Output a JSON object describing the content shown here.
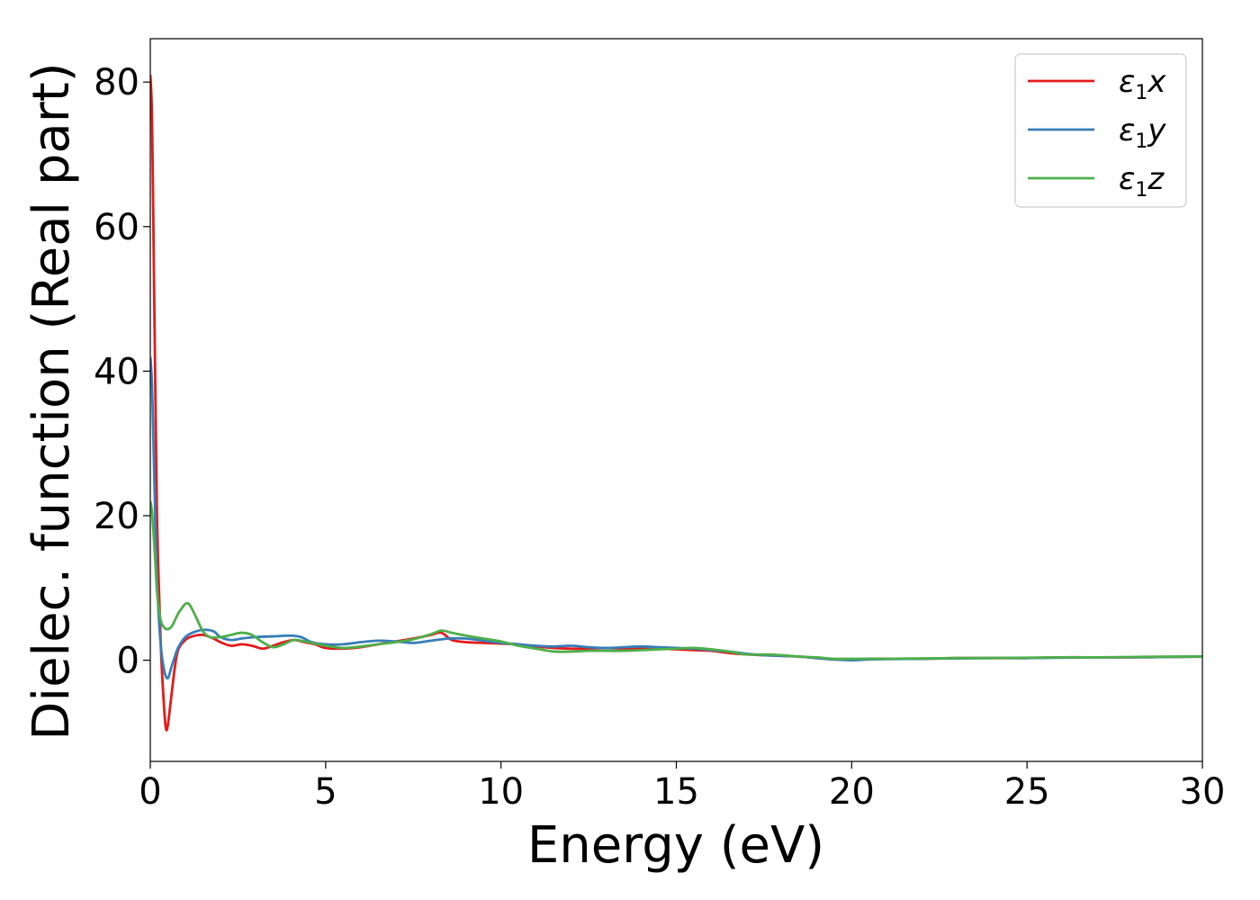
{
  "chart_data": {
    "type": "line",
    "xlabel": "Energy (eV)",
    "ylabel": "Dielec. function (Real part)",
    "xlim": [
      0,
      30
    ],
    "ylim": [
      -14,
      86
    ],
    "xticks": [
      0,
      5,
      10,
      15,
      20,
      25,
      30
    ],
    "xtick_labels": [
      "0",
      "5",
      "10",
      "15",
      "20",
      "25",
      "30"
    ],
    "yticks": [
      0,
      20,
      40,
      60,
      80
    ],
    "ytick_labels": [
      "0",
      "20",
      "40",
      "60",
      "80"
    ],
    "grid": false,
    "legend_position": "top-right",
    "series": [
      {
        "name": "ε1x",
        "legend": {
          "main": "ε",
          "sub": "1",
          "axis": "x"
        },
        "color": "#e41a1c",
        "x": [
          0.0,
          0.05,
          0.1,
          0.15,
          0.2,
          0.3,
          0.4,
          0.45,
          0.5,
          0.6,
          0.7,
          0.8,
          1.0,
          1.2,
          1.5,
          1.8,
          2.0,
          2.3,
          2.6,
          2.9,
          3.2,
          3.5,
          3.8,
          4.1,
          4.4,
          4.7,
          5.0,
          5.5,
          6.0,
          6.5,
          7.0,
          7.5,
          8.0,
          8.3,
          8.6,
          9.0,
          9.5,
          10.0,
          10.5,
          11.0,
          11.5,
          12.0,
          12.5,
          13.0,
          13.5,
          14.0,
          14.5,
          15.0,
          15.5,
          16.0,
          16.5,
          17.0,
          17.5,
          18.0,
          18.5,
          19.0,
          19.5,
          20.0,
          20.5,
          21.0,
          22.0,
          23.0,
          24.0,
          25.0,
          26.0,
          27.0,
          28.0,
          29.0,
          30.0
        ],
        "values": [
          81,
          75,
          55,
          35,
          18,
          2,
          -7,
          -9.5,
          -9,
          -5,
          -1,
          1.5,
          2.8,
          3.3,
          3.5,
          3.0,
          2.5,
          2.0,
          2.2,
          2.0,
          1.6,
          2.0,
          2.5,
          2.8,
          2.5,
          2.2,
          1.7,
          1.6,
          1.8,
          2.2,
          2.6,
          3.0,
          3.5,
          3.8,
          2.8,
          2.5,
          2.4,
          2.3,
          2.2,
          1.9,
          1.7,
          1.6,
          1.6,
          1.7,
          1.6,
          1.6,
          1.6,
          1.5,
          1.4,
          1.3,
          1.0,
          0.8,
          0.7,
          0.6,
          0.5,
          0.3,
          0.1,
          0.1,
          0.2,
          0.2,
          0.2,
          0.3,
          0.3,
          0.3,
          0.4,
          0.4,
          0.4,
          0.45,
          0.5
        ]
      },
      {
        "name": "ε1y",
        "legend": {
          "main": "ε",
          "sub": "1",
          "axis": "y"
        },
        "color": "#377eb8",
        "x": [
          0.0,
          0.05,
          0.1,
          0.15,
          0.2,
          0.3,
          0.4,
          0.5,
          0.6,
          0.7,
          0.8,
          1.0,
          1.2,
          1.5,
          1.8,
          2.0,
          2.3,
          2.6,
          3.0,
          3.5,
          4.0,
          4.3,
          4.6,
          5.0,
          5.5,
          6.0,
          6.5,
          7.0,
          7.5,
          8.0,
          8.5,
          9.0,
          9.5,
          10.0,
          10.5,
          11.0,
          11.5,
          12.0,
          12.5,
          13.0,
          13.5,
          14.0,
          14.5,
          15.0,
          15.5,
          16.0,
          16.5,
          17.0,
          17.5,
          18.0,
          18.5,
          19.0,
          19.5,
          20.0,
          20.5,
          21.0,
          22.0,
          23.0,
          24.0,
          25.0,
          26.0,
          27.0,
          28.0,
          29.0,
          30.0
        ],
        "values": [
          42,
          38,
          28,
          18,
          10,
          2,
          -1.5,
          -2.5,
          -1,
          0.5,
          1.8,
          3.2,
          3.8,
          4.2,
          4.0,
          3.2,
          2.8,
          3.0,
          3.2,
          3.3,
          3.4,
          3.2,
          2.5,
          2.2,
          2.2,
          2.5,
          2.7,
          2.6,
          2.4,
          2.7,
          3.0,
          3.0,
          2.7,
          2.4,
          2.2,
          2.0,
          1.9,
          2.0,
          1.8,
          1.7,
          1.8,
          1.9,
          1.8,
          1.7,
          1.6,
          1.4,
          1.2,
          0.9,
          0.7,
          0.6,
          0.5,
          0.3,
          0.1,
          0.0,
          0.1,
          0.15,
          0.2,
          0.25,
          0.3,
          0.3,
          0.35,
          0.4,
          0.4,
          0.45,
          0.5
        ]
      },
      {
        "name": "ε1z",
        "legend": {
          "main": "ε",
          "sub": "1",
          "axis": "z"
        },
        "color": "#4daf4a",
        "x": [
          0.0,
          0.05,
          0.1,
          0.15,
          0.2,
          0.3,
          0.4,
          0.5,
          0.6,
          0.7,
          0.8,
          0.9,
          1.0,
          1.1,
          1.2,
          1.35,
          1.5,
          1.7,
          2.0,
          2.3,
          2.6,
          2.9,
          3.2,
          3.5,
          3.8,
          4.1,
          4.4,
          4.7,
          5.0,
          5.5,
          6.0,
          6.5,
          7.0,
          7.5,
          8.0,
          8.3,
          8.6,
          9.0,
          9.5,
          10.0,
          10.5,
          11.0,
          11.5,
          12.0,
          12.5,
          13.0,
          13.5,
          14.0,
          14.5,
          15.0,
          15.5,
          16.0,
          16.5,
          17.0,
          17.5,
          18.0,
          18.5,
          19.0,
          19.5,
          20.0,
          21.0,
          22.0,
          23.0,
          24.0,
          25.0,
          26.0,
          27.0,
          28.0,
          29.0,
          30.0
        ],
        "values": [
          22,
          20.5,
          17,
          13,
          9,
          5.5,
          4.5,
          4.3,
          4.6,
          5.5,
          6.5,
          7.2,
          7.8,
          7.8,
          7.0,
          5.5,
          4.0,
          3.2,
          3.2,
          3.5,
          3.8,
          3.5,
          2.5,
          1.8,
          2.2,
          2.8,
          2.6,
          2.3,
          2.0,
          1.7,
          1.9,
          2.2,
          2.5,
          2.9,
          3.6,
          4.1,
          3.8,
          3.4,
          3.0,
          2.6,
          2.0,
          1.6,
          1.2,
          1.2,
          1.3,
          1.3,
          1.3,
          1.4,
          1.5,
          1.6,
          1.7,
          1.5,
          1.2,
          0.8,
          0.8,
          0.7,
          0.5,
          0.4,
          0.2,
          0.2,
          0.2,
          0.25,
          0.3,
          0.3,
          0.35,
          0.4,
          0.4,
          0.45,
          0.5,
          0.5
        ]
      }
    ]
  }
}
